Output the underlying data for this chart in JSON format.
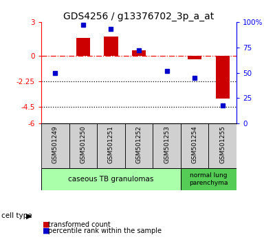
{
  "title": "GDS4256 / g13376702_3p_a_at",
  "samples": [
    "GSM501249",
    "GSM501250",
    "GSM501251",
    "GSM501252",
    "GSM501253",
    "GSM501254",
    "GSM501255"
  ],
  "bar_values": [
    0.0,
    1.6,
    1.7,
    0.5,
    0.0,
    -0.3,
    -3.8
  ],
  "dot_values_pct": [
    50,
    97,
    93,
    72,
    52,
    45,
    18
  ],
  "ylim_left": [
    -6,
    3
  ],
  "ylim_right": [
    0,
    100
  ],
  "yticks_left": [
    3,
    0,
    -2.25,
    -4.5,
    -6
  ],
  "yticks_right": [
    100,
    75,
    50,
    25,
    0
  ],
  "hlines": [
    0,
    -2.25,
    -4.5
  ],
  "hline_styles": [
    "dashdot",
    "dotted",
    "dotted"
  ],
  "hline_colors": [
    "red",
    "black",
    "black"
  ],
  "bar_color": "#cc0000",
  "dot_color": "#0000cc",
  "group1_label": "caseous TB granulomas",
  "group1_indices": [
    0,
    1,
    2,
    3,
    4
  ],
  "group2_label": "normal lung\nparenchyma",
  "group2_indices": [
    5,
    6
  ],
  "group1_color": "#aaffaa",
  "group2_color": "#55cc55",
  "cell_type_label": "cell type",
  "legend_bar_label": "transformed count",
  "legend_dot_label": "percentile rank within the sample",
  "title_fontsize": 10,
  "tick_fontsize": 7.5,
  "label_fontsize": 8,
  "bar_width": 0.5
}
